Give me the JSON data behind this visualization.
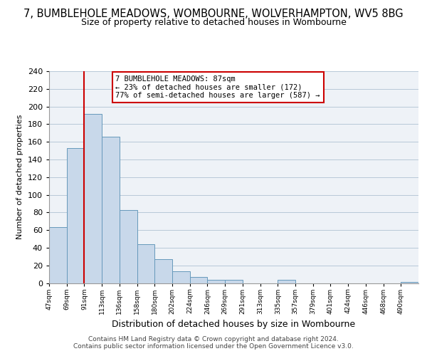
{
  "title": "7, BUMBLEHOLE MEADOWS, WOMBOURNE, WOLVERHAMPTON, WV5 8BG",
  "subtitle": "Size of property relative to detached houses in Wombourne",
  "xlabel": "Distribution of detached houses by size in Wombourne",
  "ylabel": "Number of detached properties",
  "bar_color": "#c8d8ea",
  "bar_edge_color": "#6699bb",
  "vline_color": "#cc0000",
  "annotation_text": "7 BUMBLEHOLE MEADOWS: 87sqm\n← 23% of detached houses are smaller (172)\n77% of semi-detached houses are larger (587) →",
  "annotation_box_color": "#ffffff",
  "annotation_box_edge_color": "#cc0000",
  "bins": [
    "47sqm",
    "69sqm",
    "91sqm",
    "113sqm",
    "136sqm",
    "158sqm",
    "180sqm",
    "202sqm",
    "224sqm",
    "246sqm",
    "269sqm",
    "291sqm",
    "313sqm",
    "335sqm",
    "357sqm",
    "379sqm",
    "401sqm",
    "424sqm",
    "446sqm",
    "468sqm",
    "490sqm"
  ],
  "values": [
    63,
    153,
    192,
    166,
    83,
    44,
    27,
    13,
    7,
    4,
    4,
    0,
    0,
    4,
    0,
    0,
    0,
    0,
    0,
    0,
    1
  ],
  "ylim": [
    0,
    240
  ],
  "yticks": [
    0,
    20,
    40,
    60,
    80,
    100,
    120,
    140,
    160,
    180,
    200,
    220,
    240
  ],
  "background_color": "#eef2f7",
  "footer": "Contains HM Land Registry data © Crown copyright and database right 2024.\nContains public sector information licensed under the Open Government Licence v3.0.",
  "title_fontsize": 10.5,
  "subtitle_fontsize": 9
}
